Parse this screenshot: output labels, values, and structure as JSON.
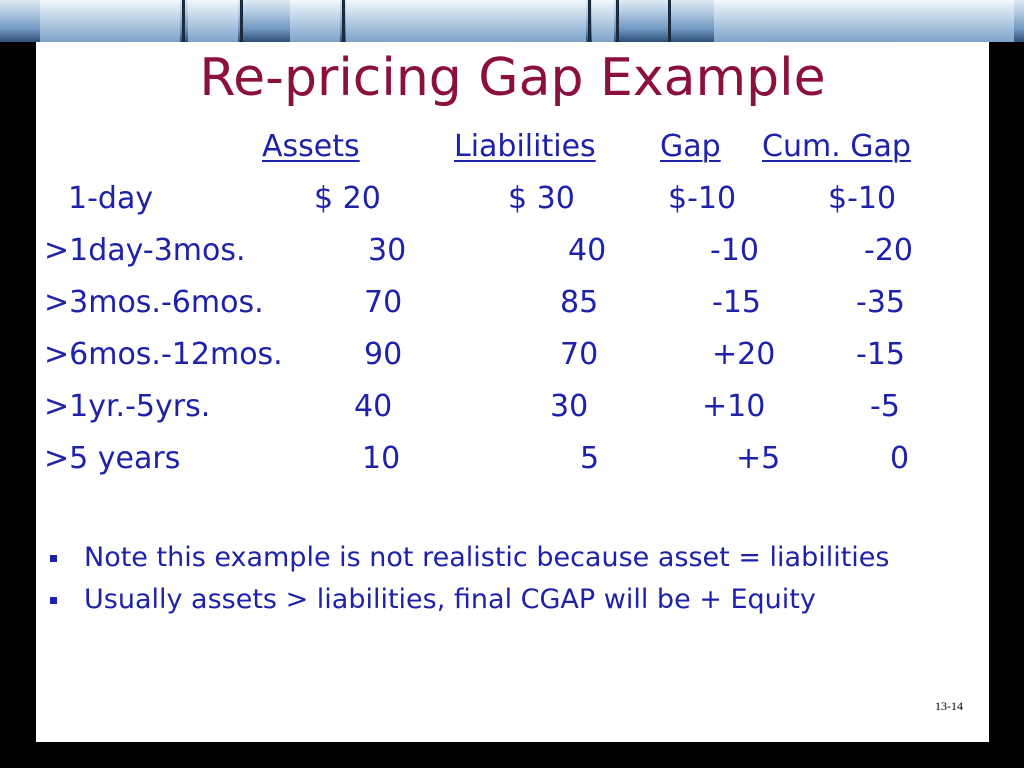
{
  "title": "Re-pricing Gap Example",
  "table": {
    "headers": [
      "Assets",
      "Liabilities",
      "Gap",
      "Cum. Gap"
    ],
    "rows": [
      {
        "label": "1-day",
        "assets": "$ 20",
        "liabilities": "$ 30",
        "gap": "$-10",
        "cum_gap": "$-10"
      },
      {
        "label": ">1day-3mos.",
        "assets": "30",
        "liabilities": "40",
        "gap": "-10",
        "cum_gap": "-20"
      },
      {
        "label": ">3mos.-6mos.",
        "assets": "70",
        "liabilities": "85",
        "gap": "-15",
        "cum_gap": "-35"
      },
      {
        "label": ">6mos.-12mos.",
        "assets": "90",
        "liabilities": "70",
        "gap": "+20",
        "cum_gap": "-15"
      },
      {
        "label": ">1yr.-5yrs.",
        "assets": "40",
        "liabilities": "30",
        "gap": "+10",
        "cum_gap": "-5"
      },
      {
        "label": ">5 years",
        "assets": "10",
        "liabilities": "5",
        "gap": "+5",
        "cum_gap": "0"
      }
    ]
  },
  "bullets": [
    "Note this example is not realistic because asset = liabilities",
    "Usually assets > liabilities, final CGAP will be + Equity"
  ],
  "slide_number": "13-14",
  "colors": {
    "title": "#8b1040",
    "body_text": "#1d22a8",
    "background_frame": "#000000",
    "slide_background": "#ffffff"
  }
}
